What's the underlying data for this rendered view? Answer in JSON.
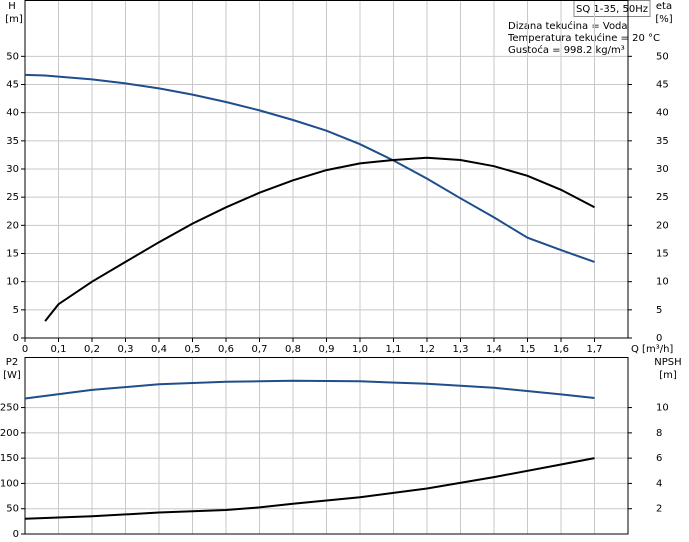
{
  "chart_data": [
    {
      "type": "line",
      "title": "SQ 1-35, 50Hz",
      "annotations": [
        "Dizana tekućina = Voda",
        "Temperatura tekućine = 20 °C",
        "Gustoća = 998.2 kg/m³"
      ],
      "ylabel": "H",
      "yunit": "[m]",
      "y2label": "eta",
      "y2unit": "[%]",
      "xlabel": "Q [m³/h]",
      "x": [
        0,
        0.06,
        0.1,
        0.2,
        0.3,
        0.4,
        0.5,
        0.6,
        0.7,
        0.8,
        0.9,
        1.0,
        1.1,
        1.2,
        1.3,
        1.4,
        1.5,
        1.6,
        1.7
      ],
      "series": [
        {
          "color": "#1f4e8c",
          "values": [
            46.7,
            46.6,
            46.4,
            45.9,
            45.2,
            44.3,
            43.2,
            41.9,
            40.4,
            38.7,
            36.8,
            34.4,
            31.5,
            28.3,
            24.8,
            21.4,
            17.8,
            15.6,
            13.5
          ]
        },
        {
          "color": "#000000",
          "axis": "y2",
          "values": [
            null,
            3,
            6,
            10,
            13.5,
            17,
            20.3,
            23.2,
            25.8,
            28,
            29.8,
            31,
            31.6,
            32,
            31.6,
            30.5,
            28.8,
            26.3,
            23.2
          ]
        }
      ],
      "xlim": [
        0,
        1.8
      ],
      "xticks": [
        0,
        {
          "value": 0.1,
          "label": "0,1"
        },
        {
          "value": 0.2,
          "label": "0,2"
        },
        {
          "value": 0.3,
          "label": "0,3"
        },
        {
          "value": 0.4,
          "label": "0,4"
        },
        {
          "value": 0.5,
          "label": "0,5"
        },
        {
          "value": 0.6,
          "label": "0,6"
        },
        {
          "value": 0.7,
          "label": "0,7"
        },
        {
          "value": 0.8,
          "label": "0,8"
        },
        {
          "value": 0.9,
          "label": "0,9"
        },
        {
          "value": 1.0,
          "label": "1,0"
        },
        {
          "value": 1.1,
          "label": "1,1"
        },
        {
          "value": 1.2,
          "label": "1,2"
        },
        {
          "value": 1.3,
          "label": "1,3"
        },
        {
          "value": 1.4,
          "label": "1,4"
        },
        {
          "value": 1.5,
          "label": "1,5"
        },
        {
          "value": 1.6,
          "label": "1,6"
        },
        {
          "value": 1.7,
          "label": "1,7"
        }
      ],
      "ylim": [
        0,
        60
      ],
      "yticks": [
        0,
        5,
        10,
        15,
        20,
        25,
        30,
        35,
        40,
        45,
        50
      ],
      "y2lim": [
        0,
        60
      ],
      "y2ticks": [
        0,
        5,
        10,
        15,
        20,
        25,
        30,
        35,
        40,
        45,
        50
      ],
      "grid": true
    },
    {
      "type": "line",
      "ylabel": "P2",
      "yunit": "[W]",
      "y2label": "NPSH",
      "y2unit": "[m]",
      "x": [
        0,
        0.2,
        0.4,
        0.6,
        0.7,
        0.8,
        1.0,
        1.2,
        1.4,
        1.6,
        1.7
      ],
      "series": [
        {
          "color": "#1f4e8c",
          "values": [
            268,
            285,
            296,
            301,
            302,
            303,
            302,
            297,
            289,
            276,
            269
          ]
        },
        {
          "color": "#000000",
          "axis": "y2",
          "values": [
            1.2,
            1.4,
            1.7,
            1.9,
            2.1,
            2.4,
            2.9,
            3.6,
            4.5,
            5.5,
            6.0
          ]
        }
      ],
      "xlim": [
        0,
        1.8
      ],
      "ylim": [
        0,
        350
      ],
      "yticks": [
        0,
        50,
        100,
        150,
        200,
        250
      ],
      "y2lim": [
        0,
        14
      ],
      "y2ticks": [
        2,
        4,
        6,
        8,
        10
      ],
      "grid": true
    }
  ]
}
